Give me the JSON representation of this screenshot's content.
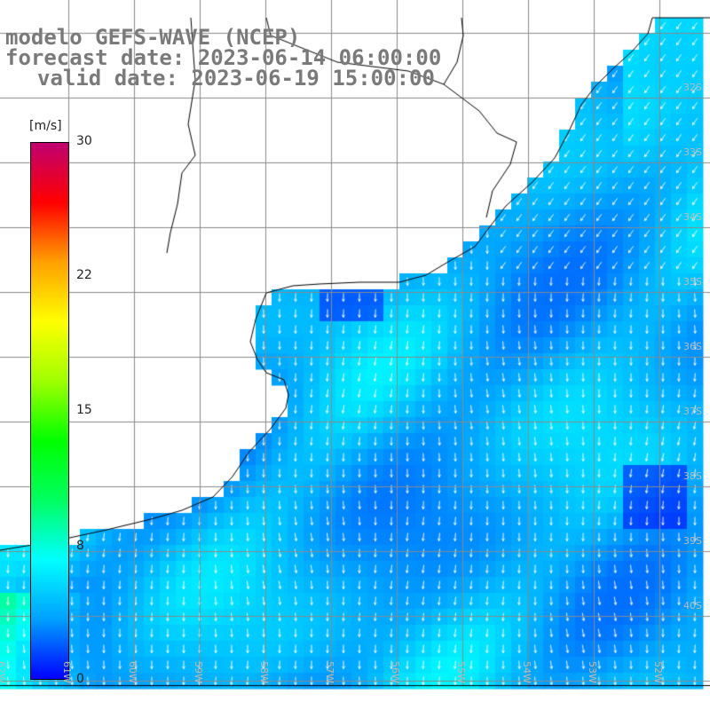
{
  "title": {
    "line1": "modelo GEFS-WAVE (NCEP)",
    "line2": "forecast date: 2023-06-14 06:00:00",
    "line3": "valid date: 2023-06-19 15:00:00"
  },
  "colorbar": {
    "units": "[m/s]",
    "ticks": [
      {
        "label": "30",
        "value": 30
      },
      {
        "label": "22",
        "value": 22
      },
      {
        "label": "15",
        "value": 15
      },
      {
        "label": "8",
        "value": 8
      },
      {
        "label": "0",
        "value": 0
      }
    ],
    "colors": [
      "#0000ff",
      "#00a0ff",
      "#00ffff",
      "#00ff60",
      "#00ff00",
      "#a0ff00",
      "#ffff00",
      "#ffa000",
      "#ff0000",
      "#c00070"
    ]
  },
  "map": {
    "land_color": "#ffffff",
    "gridlines": true,
    "lat_labels": [
      "32S",
      "33S",
      "34S",
      "35S",
      "36S",
      "37S",
      "38S",
      "39S",
      "40S"
    ],
    "lon_labels": [
      "62W",
      "61W",
      "60W",
      "59W",
      "58W",
      "57W",
      "56W",
      "55W",
      "54W",
      "53W",
      "52W"
    ]
  }
}
